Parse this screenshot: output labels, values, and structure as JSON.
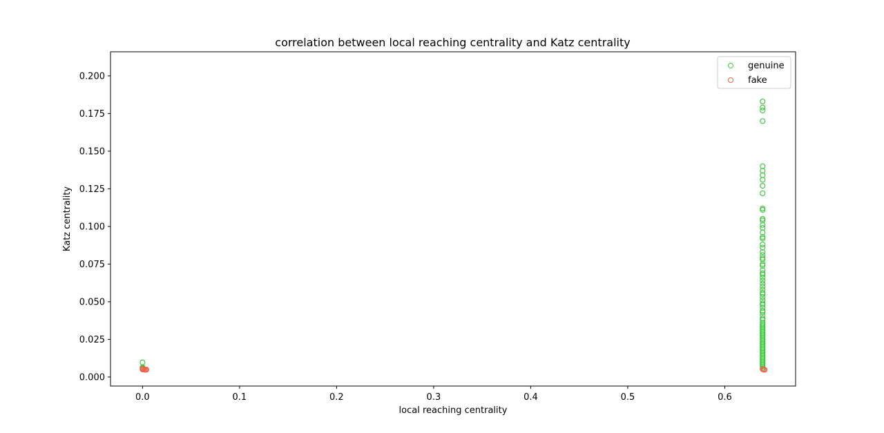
{
  "chart_data": {
    "type": "scatter",
    "title": "correlation between local reaching centrality and Katz centrality",
    "xlabel": "local reaching centrality",
    "ylabel": "Katz centrality",
    "xlim": [
      -0.033,
      0.673
    ],
    "ylim": [
      -0.006,
      0.216
    ],
    "xticks": [
      0.0,
      0.1,
      0.2,
      0.3,
      0.4,
      0.5,
      0.6
    ],
    "xtick_labels": [
      "0.0",
      "0.1",
      "0.2",
      "0.3",
      "0.4",
      "0.5",
      "0.6"
    ],
    "yticks": [
      0.0,
      0.025,
      0.05,
      0.075,
      0.1,
      0.125,
      0.15,
      0.175,
      0.2
    ],
    "ytick_labels": [
      "0.000",
      "0.025",
      "0.050",
      "0.075",
      "0.100",
      "0.125",
      "0.150",
      "0.175",
      "0.200"
    ],
    "grid": false,
    "legend_position": "top-right",
    "series": [
      {
        "name": "genuine",
        "color": "#3ec93e",
        "marker": "hollow-circle",
        "points": [
          [
            0.0,
            0.0097
          ],
          [
            0.0,
            0.0065
          ],
          [
            0.0,
            0.006
          ],
          [
            0.001,
            0.0055
          ],
          [
            0.639,
            0.183
          ],
          [
            0.639,
            0.179
          ],
          [
            0.639,
            0.177
          ],
          [
            0.639,
            0.17
          ],
          [
            0.639,
            0.14
          ],
          [
            0.639,
            0.137
          ],
          [
            0.639,
            0.134
          ],
          [
            0.639,
            0.131
          ],
          [
            0.639,
            0.127
          ],
          [
            0.639,
            0.122
          ],
          [
            0.639,
            0.112
          ],
          [
            0.639,
            0.111
          ],
          [
            0.639,
            0.105
          ],
          [
            0.639,
            0.104
          ],
          [
            0.639,
            0.101
          ],
          [
            0.639,
            0.099
          ],
          [
            0.639,
            0.096
          ],
          [
            0.639,
            0.093
          ],
          [
            0.639,
            0.092
          ],
          [
            0.639,
            0.088
          ],
          [
            0.639,
            0.086
          ],
          [
            0.639,
            0.083
          ],
          [
            0.639,
            0.081
          ],
          [
            0.639,
            0.079
          ],
          [
            0.639,
            0.078
          ],
          [
            0.639,
            0.075
          ],
          [
            0.639,
            0.074
          ],
          [
            0.639,
            0.071
          ],
          [
            0.639,
            0.069
          ],
          [
            0.639,
            0.068
          ],
          [
            0.639,
            0.066
          ],
          [
            0.639,
            0.064
          ],
          [
            0.639,
            0.062
          ],
          [
            0.639,
            0.06
          ],
          [
            0.639,
            0.058
          ],
          [
            0.639,
            0.056
          ],
          [
            0.639,
            0.055
          ],
          [
            0.639,
            0.053
          ],
          [
            0.639,
            0.051
          ],
          [
            0.639,
            0.049
          ],
          [
            0.639,
            0.048
          ],
          [
            0.639,
            0.046
          ],
          [
            0.639,
            0.044
          ],
          [
            0.639,
            0.043
          ],
          [
            0.639,
            0.041
          ],
          [
            0.639,
            0.039
          ],
          [
            0.639,
            0.038
          ],
          [
            0.639,
            0.036
          ],
          [
            0.639,
            0.035
          ],
          [
            0.639,
            0.034
          ],
          [
            0.639,
            0.033
          ],
          [
            0.639,
            0.032
          ],
          [
            0.639,
            0.031
          ],
          [
            0.639,
            0.03
          ],
          [
            0.639,
            0.029
          ],
          [
            0.639,
            0.028
          ],
          [
            0.639,
            0.027
          ],
          [
            0.639,
            0.026
          ],
          [
            0.639,
            0.025
          ],
          [
            0.639,
            0.024
          ],
          [
            0.639,
            0.023
          ],
          [
            0.639,
            0.022
          ],
          [
            0.639,
            0.021
          ],
          [
            0.639,
            0.02
          ],
          [
            0.639,
            0.019
          ],
          [
            0.639,
            0.018
          ],
          [
            0.639,
            0.017
          ],
          [
            0.639,
            0.016
          ],
          [
            0.639,
            0.015
          ],
          [
            0.639,
            0.014
          ],
          [
            0.639,
            0.013
          ],
          [
            0.639,
            0.012
          ],
          [
            0.639,
            0.011
          ],
          [
            0.639,
            0.01
          ],
          [
            0.639,
            0.009
          ],
          [
            0.639,
            0.008
          ],
          [
            0.639,
            0.007
          ],
          [
            0.639,
            0.006
          ]
        ]
      },
      {
        "name": "fake",
        "color": "#f0614a",
        "marker": "hollow-circle",
        "points": [
          [
            0.0,
            0.0055
          ],
          [
            0.0,
            0.005
          ],
          [
            0.001,
            0.0052
          ],
          [
            0.002,
            0.0049
          ],
          [
            0.003,
            0.0048
          ],
          [
            0.004,
            0.0049
          ],
          [
            0.639,
            0.0052
          ],
          [
            0.64,
            0.0049
          ],
          [
            0.641,
            0.0048
          ]
        ]
      }
    ]
  }
}
